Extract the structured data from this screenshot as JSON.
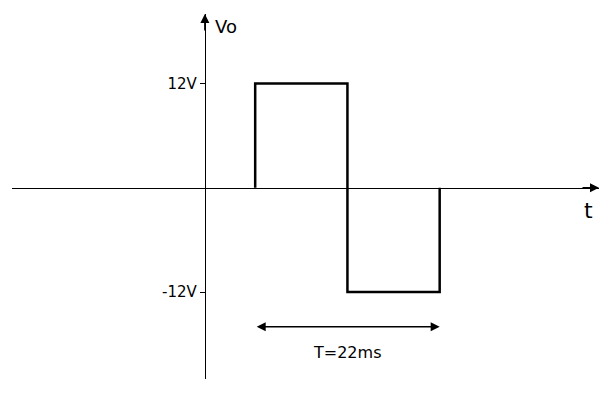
{
  "chart_data": {
    "type": "line",
    "x_label": "t",
    "y_label": "Vo",
    "x": [
      6,
      6,
      17,
      17,
      28,
      28
    ],
    "values": [
      0,
      12,
      12,
      -12,
      -12,
      0
    ],
    "color": "#000000",
    "xlim": [
      -23,
      47
    ],
    "ylim": [
      -22,
      20
    ],
    "yticks": [
      {
        "value": 12,
        "label": "12V"
      },
      {
        "value": -12,
        "label": "-12V"
      }
    ],
    "xticks": [],
    "tick_labels": "y",
    "grid": false,
    "annotations": [
      {
        "text": "T=22ms",
        "x": 17,
        "y": -19,
        "from": 6,
        "to": 28,
        "arrow_y": -16
      }
    ]
  }
}
